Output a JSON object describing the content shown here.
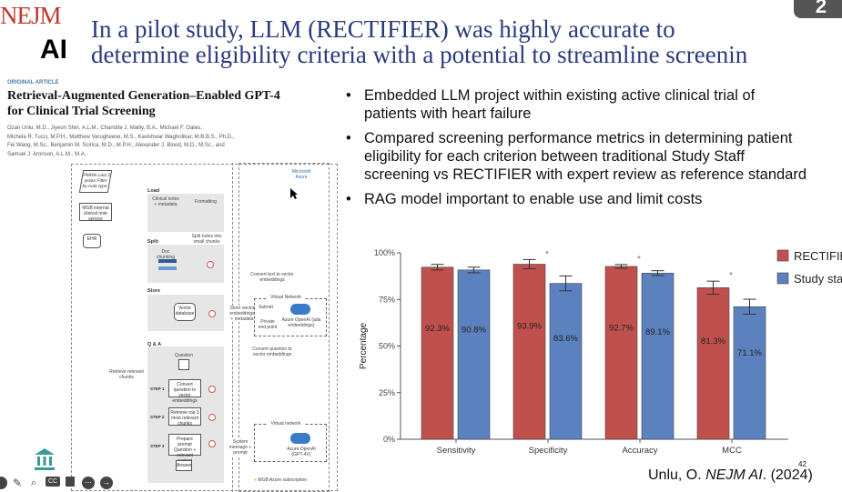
{
  "logo": {
    "line1": "NEJM",
    "line2": "AI"
  },
  "slide": {
    "title_line1": "In a pilot study, LLM (RECTIFIER) was highly accurate to",
    "title_line2": "determine eligibility criteria with a potential to streamline screenin",
    "badge": "2",
    "page_number": "42",
    "citation_prefix": "Unlu, O. ",
    "citation_journal": "NEJM AI",
    "citation_suffix": ". (2024)"
  },
  "article": {
    "label": "ORIGINAL ARTICLE",
    "title_line1": "Retrieval-Augmented Generation–Enabled GPT-4",
    "title_line2": "for Clinical Trial Screening",
    "authors": [
      "Ozan Unlu, M.D., Jiyeon Shin, A.L.M., Charlotte J. Mailly, B.A., Michael F. Oates,",
      "Michela R. Tucci, M.P.H., Matthew Varugheese, M.S., Kavishwar Wagholikar, M.B.B.S., Ph.D.,",
      "Fei Wang, M.Sc., Benjamin M. Scirica, M.D., M.P.H., Alexander J. Blood, M.D., M.Sc., and",
      "Samuel J. Aronson, A.L.M., M.A."
    ]
  },
  "diagram": {
    "pmrn": "PMRN Last 2 years Filter by note type",
    "mgb": "MGB internal clinical note service",
    "ehr": "EHR",
    "load": "Load",
    "notes": "Clinical notes + metadata",
    "formatting": "Formatting",
    "split_notes": "Split notes into small chunks",
    "split": "Split",
    "doc_chunking": "Doc chunking",
    "convert_text": "Convert text to vector embeddings",
    "store": "Store",
    "vector_db": "Vector database",
    "store_vec": "Store vector embeddings + metadata",
    "vnet": "Virtual Network",
    "subnet": "Subnet",
    "private_ep": "Private end point",
    "azure_ada": "Azure OpenAI (ada embeddings)",
    "qa": "Q & A",
    "question": "Question",
    "convert_q": "Convert question to vector embeddings",
    "retrieve_chunks": "Retrieve relevant chunks",
    "step1": "STEP 1",
    "step1_text": "Convert question to vector embeddings",
    "step2": "STEP 2",
    "step2_text": "Retrieve top 3 most relevant chunks",
    "step3": "STEP 3",
    "step3_text": "Prepare prompt Question + relevant content",
    "answer": "Answer",
    "system_msg": "System message + prompt",
    "vnet2": "Virtual network",
    "azure_gpt": "Azure OpenAI (GPT-4V)",
    "subscription": "MGB Azure subscription",
    "azure_logo": "Microsoft Azure"
  },
  "bullets": [
    {
      "lines": [
        "Embedded LLM project within existing active clinical trial of",
        "patients with heart failure"
      ]
    },
    {
      "lines": [
        "Compared screening performance metrics in determining patient",
        "eligibility for each criterion between traditional Study Staff",
        "screening vs RECTIFIER with expert review as reference standard"
      ]
    },
    {
      "lines": [
        "RAG model important to enable use and limit costs"
      ]
    }
  ],
  "toolbar": {
    "icons": [
      "pen-icon",
      "search-icon",
      "cc-icon",
      "more-icon",
      "next-icon"
    ],
    "cc": "CC"
  },
  "chart_data": {
    "type": "bar",
    "ylabel": "Percentage",
    "xlabel": "",
    "ylim": [
      0,
      100
    ],
    "yticks": [
      "0%",
      "25%",
      "50%",
      "75%",
      "100%"
    ],
    "categories": [
      "Sensitivity",
      "Specificity",
      "Accuracy",
      "MCC"
    ],
    "series": [
      {
        "name": "RECTIFIER",
        "color": "#c0504d",
        "values": [
          92.3,
          93.9,
          92.7,
          81.3
        ],
        "labels": [
          "92.3%",
          "93.9%",
          "92.7%",
          "81.3%"
        ],
        "error": [
          1.5,
          2.5,
          1.0,
          3.5
        ]
      },
      {
        "name": "Study sta",
        "color": "#5b82be",
        "values": [
          90.8,
          83.6,
          89.1,
          71.1
        ],
        "labels": [
          "90.8%",
          "83.6%",
          "89.1%",
          "71.1%"
        ],
        "error": [
          1.5,
          4.0,
          1.3,
          4.0
        ]
      }
    ],
    "significance": [
      "",
      "*",
      "*",
      "*"
    ],
    "legend": "top-right",
    "grid": false
  }
}
